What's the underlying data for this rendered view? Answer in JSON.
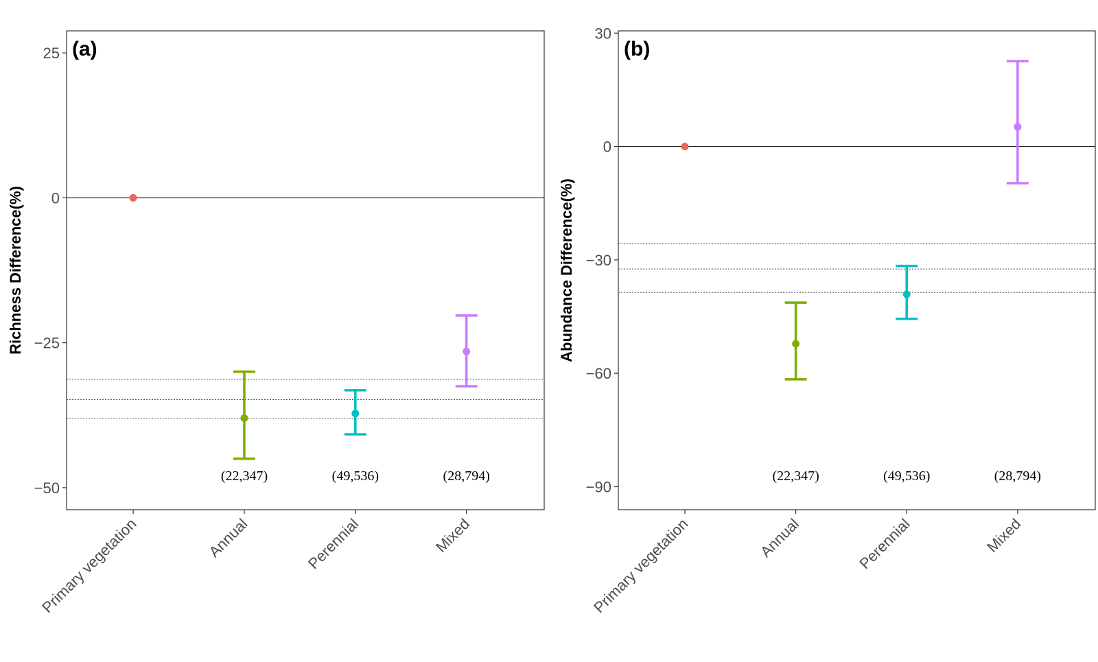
{
  "chart_data": [
    {
      "type": "errorbar",
      "panel_label": "(a)",
      "ylabel": "Richness Difference(%)",
      "xlabel": "",
      "categories": [
        "Primary vegetation",
        "Annual",
        "Perennial",
        "Mixed"
      ],
      "colors": [
        "#e8685e",
        "#7cae00",
        "#00bfc4",
        "#c77cff"
      ],
      "estimates": [
        0,
        -38,
        -37.2,
        -26.5
      ],
      "lower": [
        null,
        -45,
        -40.8,
        -32.5
      ],
      "upper": [
        null,
        -30,
        -33.2,
        -20.3
      ],
      "annotations": [
        "",
        "(22,347)",
        "(49,536)",
        "(28,794)"
      ],
      "yticks": [
        25,
        0,
        -25,
        -50
      ],
      "ytick_labels": [
        "25",
        "0",
        "−25",
        "−50"
      ],
      "ylim": [
        -53.8,
        28.8
      ],
      "reference_line": 0,
      "dotted_lines": [
        -31.3,
        -34.8,
        -38
      ]
    },
    {
      "type": "errorbar",
      "panel_label": "(b)",
      "ylabel": "Abundance Difference(%)",
      "xlabel": "",
      "categories": [
        "Primary vegetation",
        "Annual",
        "Perennial",
        "Mixed"
      ],
      "colors": [
        "#e8685e",
        "#7cae00",
        "#00bfc4",
        "#c77cff"
      ],
      "estimates": [
        0,
        -52.2,
        -39.1,
        5.2
      ],
      "lower": [
        null,
        -61.6,
        -45.6,
        -9.7
      ],
      "upper": [
        null,
        -41.3,
        -31.6,
        22.6
      ],
      "annotations": [
        "",
        "(22,347)",
        "(49,536)",
        "(28,794)"
      ],
      "yticks": [
        30,
        0,
        -30,
        -60,
        -90
      ],
      "ytick_labels": [
        "30",
        "0",
        "−30",
        "−60",
        "−90"
      ],
      "ylim": [
        -96.1,
        30.6
      ],
      "reference_line": 0,
      "dotted_lines": [
        -25.6,
        -32.4,
        -38.6
      ]
    }
  ]
}
